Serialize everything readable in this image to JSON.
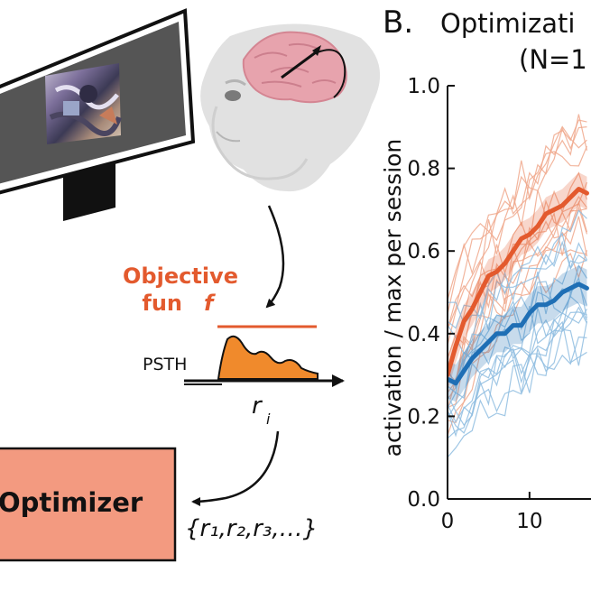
{
  "panel_b": {
    "letter": "B.",
    "title_line1": "Optimizati",
    "title_line2": "(N=1"
  },
  "schematic": {
    "objective_line1": "Objective",
    "objective_line2": "fun",
    "objective_symbol": "f",
    "psth_label": "PSTH",
    "response_var": "r",
    "response_sub": "i",
    "optimizer_label": "Optimizer",
    "response_set": "{r₁,r₂,r₃,…}"
  },
  "colors": {
    "orange": "#e35a2e",
    "orange_light": "#f0a88c",
    "blue": "#1f6fb5",
    "blue_light": "#8fbde0",
    "optimizer_fill": "#f39a80",
    "psth_fill": "#f08a2c"
  },
  "chart_data": {
    "type": "line",
    "title": "Optimizati",
    "xlabel": "",
    "ylabel": "activation / max per session",
    "xlim": [
      0,
      17.5
    ],
    "ylim": [
      0,
      1
    ],
    "x_ticks": [
      0,
      10
    ],
    "y_ticks": [
      "0.0",
      "0.2",
      "0.4",
      "0.6",
      "0.8",
      "1.0"
    ],
    "series": [
      {
        "name": "orange-mean",
        "color": "#e35a2e",
        "x": [
          0,
          1,
          2,
          3,
          4,
          5,
          6,
          7,
          8,
          9,
          10,
          11,
          12,
          13,
          14,
          15,
          16,
          17
        ],
        "values": [
          0.3,
          0.37,
          0.43,
          0.46,
          0.5,
          0.54,
          0.55,
          0.57,
          0.6,
          0.63,
          0.64,
          0.66,
          0.69,
          0.7,
          0.71,
          0.73,
          0.75,
          0.74
        ],
        "band": 0.04
      },
      {
        "name": "blue-mean",
        "color": "#1f6fb5",
        "x": [
          0,
          1,
          2,
          3,
          4,
          5,
          6,
          7,
          8,
          9,
          10,
          11,
          12,
          13,
          14,
          15,
          16,
          17
        ],
        "values": [
          0.29,
          0.28,
          0.31,
          0.34,
          0.36,
          0.38,
          0.4,
          0.4,
          0.42,
          0.42,
          0.45,
          0.47,
          0.47,
          0.48,
          0.5,
          0.51,
          0.52,
          0.51
        ],
        "band": 0.045
      }
    ]
  }
}
